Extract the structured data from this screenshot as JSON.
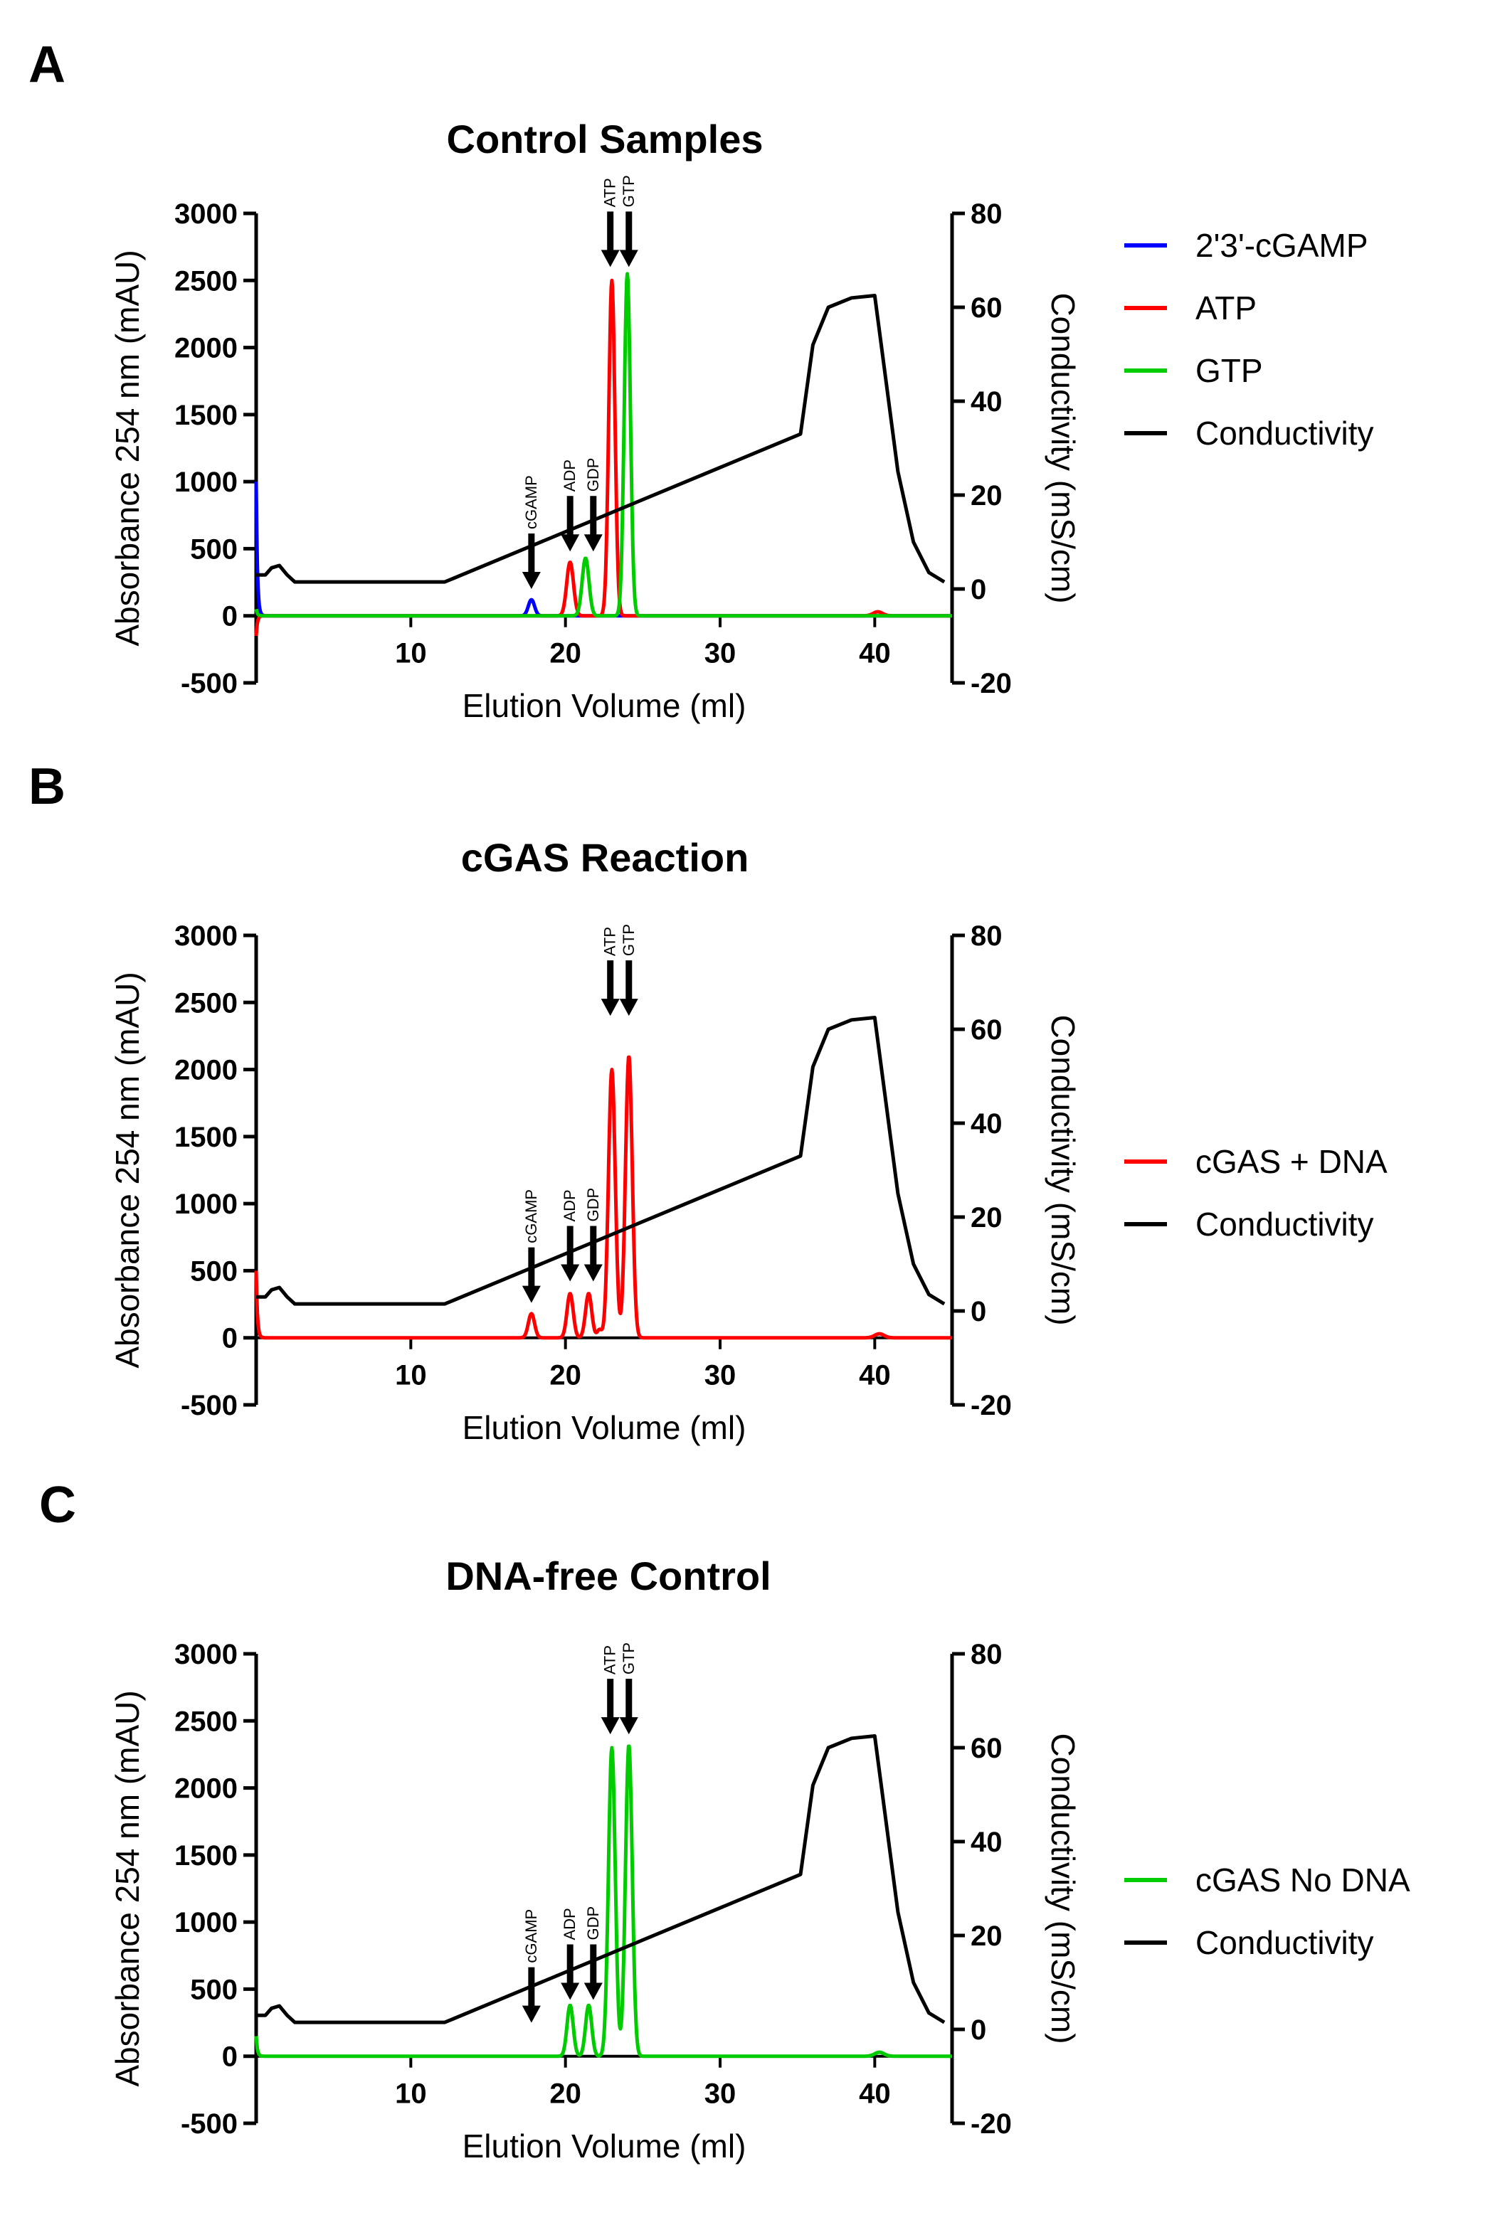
{
  "panels": [
    {
      "letter": "A",
      "title": "Control Samples"
    },
    {
      "letter": "B",
      "title": "cGAS Reaction"
    },
    {
      "letter": "C",
      "title": "DNA-free Control"
    }
  ],
  "colors": {
    "blue": "#0000ff",
    "red": "#ff0000",
    "green": "#00cc00",
    "black": "#000000"
  },
  "chart_data": [
    {
      "type": "line",
      "panel": "A",
      "title": "Control Samples",
      "xlabel": "Elution Volume (ml)",
      "ylabel": "Absorbance 254 nm (mAU)",
      "y2label": "Conductivity (mS/cm)",
      "xlim": [
        0,
        45
      ],
      "ylim": [
        -500,
        3000
      ],
      "y2lim": [
        -20,
        80
      ],
      "xticks": [
        10,
        20,
        30,
        40
      ],
      "yticks": [
        -500,
        0,
        500,
        1000,
        1500,
        2000,
        2500,
        3000
      ],
      "y2ticks": [
        -20,
        0,
        20,
        40,
        60,
        80
      ],
      "legend_position": "right",
      "series": [
        {
          "name": "2'3'-cGAMP",
          "color": "#0000ff",
          "axis": "left",
          "start_spike": 1000,
          "peaks": [
            {
              "x": 17.8,
              "y": 120,
              "w": 0.2
            }
          ]
        },
        {
          "name": "ATP",
          "color": "#ff0000",
          "axis": "left",
          "start_spike": -150,
          "peaks": [
            {
              "x": 20.3,
              "y": 400,
              "w": 0.22
            },
            {
              "x": 23.0,
              "y": 2500,
              "w": 0.2
            },
            {
              "x": 40.2,
              "y": 30,
              "w": 0.3
            }
          ]
        },
        {
          "name": "GTP",
          "color": "#00cc00",
          "axis": "left",
          "start_spike": 50,
          "peaks": [
            {
              "x": 21.3,
              "y": 430,
              "w": 0.22
            },
            {
              "x": 24.0,
              "y": 2550,
              "w": 0.2
            }
          ]
        },
        {
          "name": "Conductivity",
          "color": "#000000",
          "axis": "right"
        }
      ],
      "annotations": [
        {
          "label": "cGAMP",
          "x": 17.8,
          "y_tip": 200
        },
        {
          "label": "ADP",
          "x": 20.3,
          "y_tip": 480
        },
        {
          "label": "GDP",
          "x": 21.8,
          "y_tip": 480
        },
        {
          "label": "ATP",
          "x": 22.9,
          "y_tip": 2600
        },
        {
          "label": "GTP",
          "x": 24.1,
          "y_tip": 2600
        }
      ]
    },
    {
      "type": "line",
      "panel": "B",
      "title": "cGAS Reaction",
      "xlabel": "Elution Volume (ml)",
      "ylabel": "Absorbance 254 nm (mAU)",
      "y2label": "Conductivity (mS/cm)",
      "xlim": [
        0,
        45
      ],
      "ylim": [
        -500,
        3000
      ],
      "y2lim": [
        -20,
        80
      ],
      "xticks": [
        10,
        20,
        30,
        40
      ],
      "yticks": [
        -500,
        0,
        500,
        1000,
        1500,
        2000,
        2500,
        3000
      ],
      "y2ticks": [
        -20,
        0,
        20,
        40,
        60,
        80
      ],
      "legend_position": "right",
      "series": [
        {
          "name": "cGAS + DNA",
          "color": "#ff0000",
          "axis": "left",
          "start_spike": 500,
          "peaks": [
            {
              "x": 17.8,
              "y": 180,
              "w": 0.2
            },
            {
              "x": 20.3,
              "y": 330,
              "w": 0.2
            },
            {
              "x": 21.5,
              "y": 330,
              "w": 0.2
            },
            {
              "x": 22.2,
              "y": 60,
              "w": 0.15
            },
            {
              "x": 23.0,
              "y": 2000,
              "w": 0.22
            },
            {
              "x": 24.1,
              "y": 2100,
              "w": 0.22
            },
            {
              "x": 40.3,
              "y": 30,
              "w": 0.3
            }
          ]
        },
        {
          "name": "Conductivity",
          "color": "#000000",
          "axis": "right"
        }
      ],
      "annotations": [
        {
          "label": "cGAMP",
          "x": 17.8,
          "y_tip": 260
        },
        {
          "label": "ADP",
          "x": 20.3,
          "y_tip": 420
        },
        {
          "label": "GDP",
          "x": 21.8,
          "y_tip": 420
        },
        {
          "label": "ATP",
          "x": 22.9,
          "y_tip": 2400
        },
        {
          "label": "GTP",
          "x": 24.1,
          "y_tip": 2400
        }
      ]
    },
    {
      "type": "line",
      "panel": "C",
      "title": "DNA-free Control",
      "xlabel": "Elution Volume (ml)",
      "ylabel": "Absorbance 254 nm (mAU)",
      "y2label": "Conductivity (mS/cm)",
      "xlim": [
        0,
        45
      ],
      "ylim": [
        -500,
        3000
      ],
      "y2lim": [
        -20,
        80
      ],
      "xticks": [
        10,
        20,
        30,
        40
      ],
      "yticks": [
        -500,
        0,
        500,
        1000,
        1500,
        2000,
        2500,
        3000
      ],
      "y2ticks": [
        -20,
        0,
        20,
        40,
        60,
        80
      ],
      "legend_position": "right",
      "series": [
        {
          "name": "cGAS No DNA",
          "color": "#00cc00",
          "axis": "left",
          "start_spike": 150,
          "peaks": [
            {
              "x": 20.3,
              "y": 380,
              "w": 0.2
            },
            {
              "x": 21.5,
              "y": 380,
              "w": 0.2
            },
            {
              "x": 23.0,
              "y": 2300,
              "w": 0.22
            },
            {
              "x": 24.1,
              "y": 2320,
              "w": 0.22
            },
            {
              "x": 40.3,
              "y": 30,
              "w": 0.3
            }
          ]
        },
        {
          "name": "Conductivity",
          "color": "#000000",
          "axis": "right"
        }
      ],
      "annotations": [
        {
          "label": "cGAMP",
          "x": 17.8,
          "y_tip": 250
        },
        {
          "label": "ADP",
          "x": 20.3,
          "y_tip": 420
        },
        {
          "label": "GDP",
          "x": 21.8,
          "y_tip": 420
        },
        {
          "label": "ATP",
          "x": 22.9,
          "y_tip": 2400
        },
        {
          "label": "GTP",
          "x": 24.1,
          "y_tip": 2400
        }
      ]
    }
  ],
  "conductivity_profile": [
    [
      0,
      3
    ],
    [
      0.6,
      3
    ],
    [
      1.0,
      4.5
    ],
    [
      1.5,
      5
    ],
    [
      2.0,
      3
    ],
    [
      2.5,
      1.5
    ],
    [
      12.2,
      1.5
    ],
    [
      35.2,
      33
    ],
    [
      36.0,
      52
    ],
    [
      37.0,
      60
    ],
    [
      38.5,
      62
    ],
    [
      40.0,
      62.5
    ],
    [
      40.5,
      50
    ],
    [
      41.5,
      25
    ],
    [
      42.5,
      10
    ],
    [
      43.5,
      3.5
    ],
    [
      44.5,
      1.5
    ]
  ]
}
